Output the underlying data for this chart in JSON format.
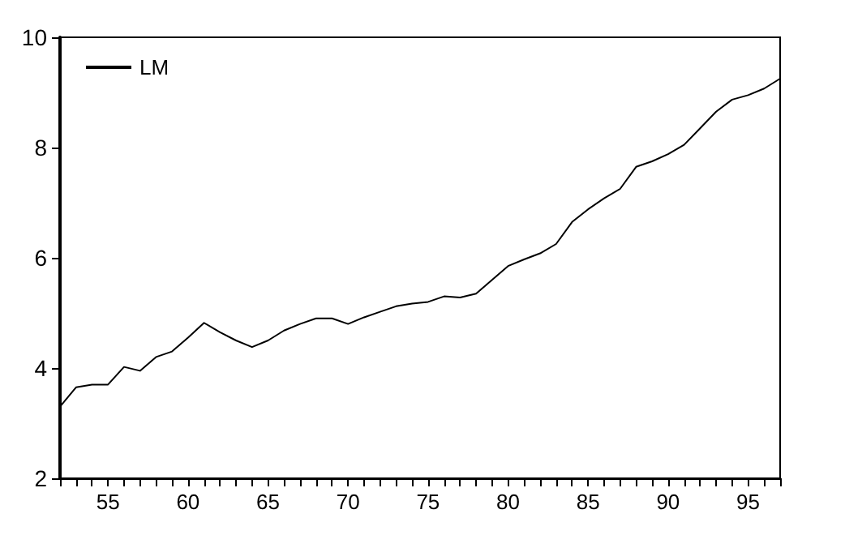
{
  "chart_data": {
    "type": "line",
    "x": [
      52,
      53,
      54,
      55,
      56,
      57,
      58,
      59,
      60,
      61,
      62,
      63,
      64,
      65,
      66,
      67,
      68,
      69,
      70,
      71,
      72,
      73,
      74,
      75,
      76,
      77,
      78,
      79,
      80,
      81,
      82,
      83,
      84,
      85,
      86,
      87,
      88,
      89,
      90,
      91,
      92,
      93,
      94,
      95,
      96,
      97
    ],
    "series": [
      {
        "name": "LM",
        "color": "#000000",
        "values": [
          3.3,
          3.65,
          3.7,
          3.7,
          4.02,
          3.95,
          4.2,
          4.3,
          4.55,
          4.82,
          4.65,
          4.5,
          4.38,
          4.5,
          4.68,
          4.8,
          4.9,
          4.9,
          4.8,
          4.92,
          5.02,
          5.12,
          5.17,
          5.2,
          5.3,
          5.28,
          5.35,
          5.6,
          5.85,
          5.97,
          6.08,
          6.25,
          6.65,
          6.88,
          7.08,
          7.25,
          7.65,
          7.75,
          7.88,
          8.05,
          8.35,
          8.65,
          8.87,
          8.95,
          9.07,
          9.25
        ]
      }
    ],
    "xlim": [
      52,
      97
    ],
    "xticks": [
      {
        "value": 52,
        "label": null
      },
      {
        "value": 53,
        "label": null
      },
      {
        "value": 54,
        "label": null
      },
      55,
      {
        "value": 56,
        "label": null
      },
      {
        "value": 57,
        "label": null
      },
      {
        "value": 58,
        "label": null
      },
      {
        "value": 59,
        "label": null
      },
      60,
      {
        "value": 61,
        "label": null
      },
      {
        "value": 62,
        "label": null
      },
      {
        "value": 63,
        "label": null
      },
      {
        "value": 64,
        "label": null
      },
      65,
      {
        "value": 66,
        "label": null
      },
      {
        "value": 67,
        "label": null
      },
      {
        "value": 68,
        "label": null
      },
      {
        "value": 69,
        "label": null
      },
      70,
      {
        "value": 71,
        "label": null
      },
      {
        "value": 72,
        "label": null
      },
      {
        "value": 73,
        "label": null
      },
      {
        "value": 74,
        "label": null
      },
      75,
      {
        "value": 76,
        "label": null
      },
      {
        "value": 77,
        "label": null
      },
      {
        "value": 78,
        "label": null
      },
      {
        "value": 79,
        "label": null
      },
      80,
      {
        "value": 81,
        "label": null
      },
      {
        "value": 82,
        "label": null
      },
      {
        "value": 83,
        "label": null
      },
      {
        "value": 84,
        "label": null
      },
      85,
      {
        "value": 86,
        "label": null
      },
      {
        "value": 87,
        "label": null
      },
      {
        "value": 88,
        "label": null
      },
      {
        "value": 89,
        "label": null
      },
      90,
      {
        "value": 91,
        "label": null
      },
      {
        "value": 92,
        "label": null
      },
      {
        "value": 93,
        "label": null
      },
      {
        "value": 94,
        "label": null
      },
      95,
      {
        "value": 96,
        "label": null
      },
      {
        "value": 97,
        "label": null
      }
    ],
    "ylim": [
      2,
      10
    ],
    "yticks": [
      2,
      4,
      6,
      8,
      10
    ],
    "grid": false,
    "legend": "top left",
    "marker": "none",
    "line_style": "solid"
  }
}
